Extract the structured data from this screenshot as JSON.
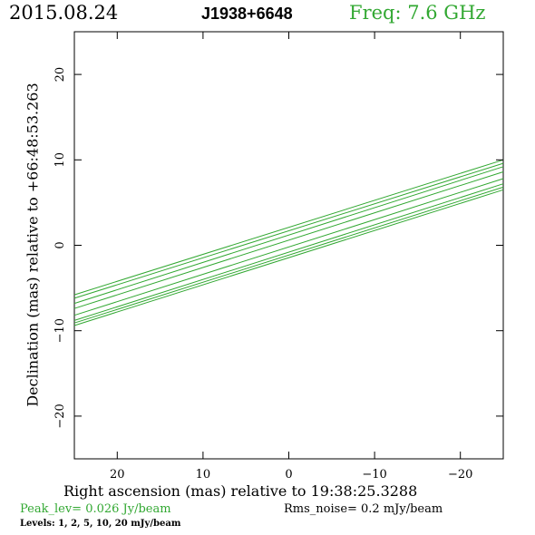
{
  "header": {
    "date": "2015.08.24",
    "source": "J1938+6648",
    "freq": "Freq: 7.6 GHz"
  },
  "footer": {
    "peak": "Peak_lev=  0.026 Jy/beam",
    "rms": "Rms_noise=  0.2 mJy/beam",
    "levels": "Levels:   1,   2,   5,  10,  20 mJy/beam"
  },
  "colors": {
    "contour": "#32a832",
    "axis": "#000000"
  },
  "chart_data": {
    "type": "line",
    "title": "J1938+6648",
    "xlabel": "Right ascension (mas) relative to 19:38:25.3288",
    "ylabel": "Declination (mas) relative to +66:48:53.263",
    "xlim": [
      25,
      -25
    ],
    "ylim": [
      -25,
      25
    ],
    "x_ticks": [
      20,
      10,
      0,
      -10,
      -20
    ],
    "x_tick_labels": [
      "20",
      "10",
      "0",
      "−10",
      "−20"
    ],
    "y_ticks": [
      20,
      10,
      0,
      -10,
      -20
    ],
    "y_tick_labels": [
      "20",
      "10",
      "0",
      "−10",
      "−20"
    ],
    "grid": false,
    "series": [
      {
        "x": [
          25,
          -25
        ],
        "y": [
          -5.8,
          10.0
        ]
      },
      {
        "x": [
          25,
          -25
        ],
        "y": [
          -6.2,
          9.6
        ]
      },
      {
        "x": [
          25,
          -25
        ],
        "y": [
          -6.8,
          9.2
        ]
      },
      {
        "x": [
          25,
          -25
        ],
        "y": [
          -7.4,
          8.6
        ]
      },
      {
        "x": [
          25,
          -25
        ],
        "y": [
          -8.2,
          7.8
        ]
      },
      {
        "x": [
          25,
          -25
        ],
        "y": [
          -8.8,
          7.2
        ]
      },
      {
        "x": [
          25,
          -25
        ],
        "y": [
          -9.1,
          6.8
        ]
      },
      {
        "x": [
          25,
          -25
        ],
        "y": [
          -9.4,
          6.5
        ]
      }
    ]
  }
}
